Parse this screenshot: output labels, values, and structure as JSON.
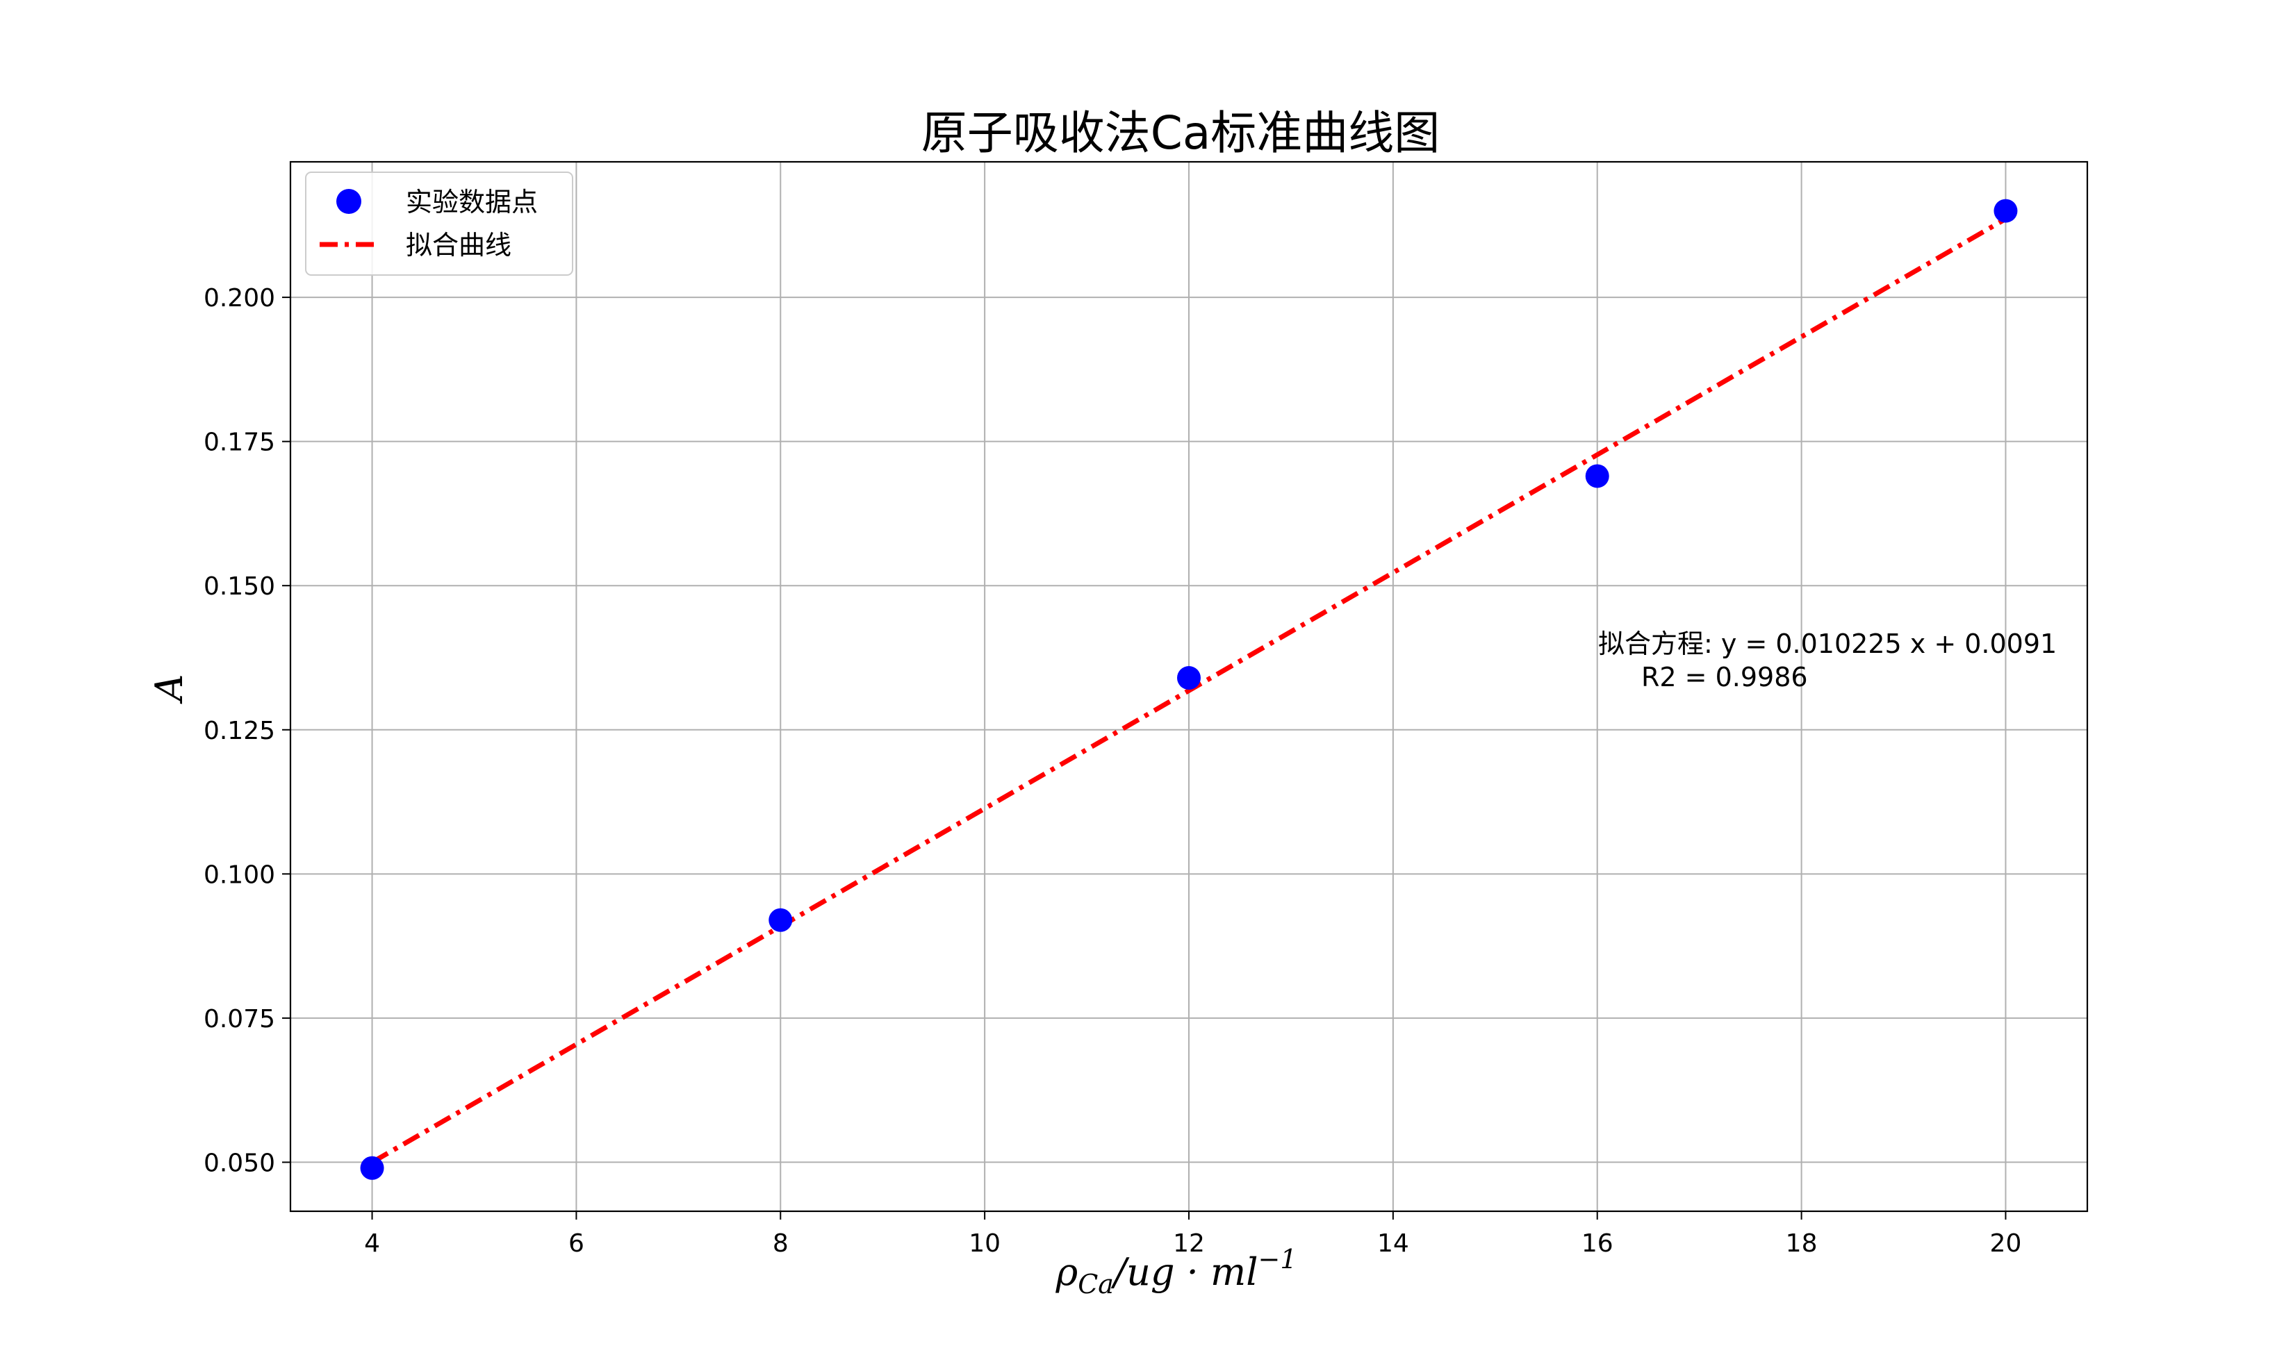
{
  "chart_data": {
    "type": "scatter",
    "title": "原子吸收法Ca标准曲线图",
    "xlabel": {
      "base": "ρ",
      "sub": "Ca",
      "mid": "/ug · ml",
      "sup": "−1"
    },
    "ylabel": "A",
    "xlim": [
      3.2,
      20.8
    ],
    "ylim": [
      0.0415,
      0.2235
    ],
    "xticks": [
      4,
      6,
      8,
      10,
      12,
      14,
      16,
      18,
      20
    ],
    "xtick_labels": [
      "4",
      "6",
      "8",
      "10",
      "12",
      "14",
      "16",
      "18",
      "20"
    ],
    "yticks": [
      0.05,
      0.075,
      0.1,
      0.125,
      0.15,
      0.175,
      0.2
    ],
    "ytick_labels": [
      "0.050",
      "0.075",
      "0.100",
      "0.125",
      "0.150",
      "0.175",
      "0.200"
    ],
    "grid": true,
    "legend_position": "top-left",
    "series": [
      {
        "name": "实验数据点",
        "kind": "scatter",
        "color": "#0000ff",
        "x": [
          4,
          8,
          12,
          16,
          20
        ],
        "y": [
          0.049,
          0.092,
          0.134,
          0.169,
          0.215
        ]
      },
      {
        "name": "拟合曲线",
        "kind": "line",
        "style": "dashdot",
        "color": "#ff0000",
        "slope": 0.010225,
        "intercept": 0.0091,
        "x": [
          4,
          20
        ]
      }
    ],
    "annotation": {
      "line1": "拟合方程: y = 0.010225 x + 0.0091",
      "line2": "R2 = 0.9986"
    }
  }
}
